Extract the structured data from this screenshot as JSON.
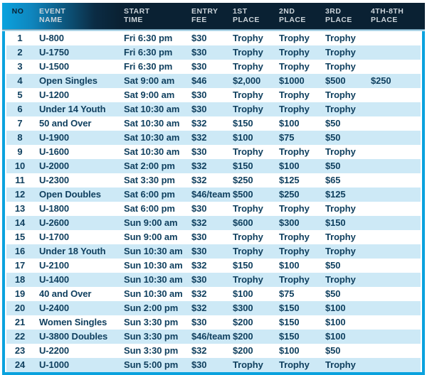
{
  "colors": {
    "frame_blue": "#0aa2de",
    "header_dark": "#0a2133",
    "header_text": "#ccd4da",
    "row_alt": "#cde9f6",
    "body_text": "#10405f"
  },
  "table": {
    "column_ids": [
      "no",
      "event",
      "start",
      "fee",
      "first",
      "second",
      "third",
      "fourth_eighth"
    ],
    "header": [
      {
        "line1": "NO",
        "line2": ""
      },
      {
        "line1": "EVENT",
        "line2": "NAME"
      },
      {
        "line1": "START",
        "line2": "TIME"
      },
      {
        "line1": "ENTRY",
        "line2": "FEE"
      },
      {
        "line1": "1ST",
        "line2": "PLACE"
      },
      {
        "line1": "2ND",
        "line2": "PLACE"
      },
      {
        "line1": "3RD",
        "line2": "PLACE"
      },
      {
        "line1": "4TH-8TH",
        "line2": "PLACE"
      }
    ],
    "rows": [
      {
        "no": "1",
        "event": "U-800",
        "start": "Fri 6:30 pm",
        "fee": "$30",
        "first": "Trophy",
        "second": "Trophy",
        "third": "Trophy",
        "fourth_eighth": ""
      },
      {
        "no": "2",
        "event": "U-1750",
        "start": "Fri 6:30 pm",
        "fee": "$30",
        "first": "Trophy",
        "second": "Trophy",
        "third": "Trophy",
        "fourth_eighth": ""
      },
      {
        "no": "3",
        "event": "U-1500",
        "start": "Fri 6:30 pm",
        "fee": "$30",
        "first": "Trophy",
        "second": "Trophy",
        "third": "Trophy",
        "fourth_eighth": ""
      },
      {
        "no": "4",
        "event": "Open Singles",
        "start": "Sat 9:00 am",
        "fee": "$46",
        "first": "$2,000",
        "second": "$1000",
        "third": "$500",
        "fourth_eighth": "$250"
      },
      {
        "no": "5",
        "event": "U-1200",
        "start": "Sat 9:00 am",
        "fee": "$30",
        "first": "Trophy",
        "second": "Trophy",
        "third": "Trophy",
        "fourth_eighth": ""
      },
      {
        "no": "6",
        "event": "Under 14 Youth",
        "start": "Sat 10:30 am",
        "fee": "$30",
        "first": "Trophy",
        "second": "Trophy",
        "third": "Trophy",
        "fourth_eighth": ""
      },
      {
        "no": "7",
        "event": "50 and Over",
        "start": "Sat 10:30 am",
        "fee": "$32",
        "first": "$150",
        "second": "$100",
        "third": "$50",
        "fourth_eighth": ""
      },
      {
        "no": "8",
        "event": "U-1900",
        "start": "Sat 10:30 am",
        "fee": "$32",
        "first": "$100",
        "second": "$75",
        "third": "$50",
        "fourth_eighth": ""
      },
      {
        "no": "9",
        "event": "U-1600",
        "start": "Sat 10:30 am",
        "fee": "$30",
        "first": "Trophy",
        "second": "Trophy",
        "third": "Trophy",
        "fourth_eighth": ""
      },
      {
        "no": "10",
        "event": "U-2000",
        "start": "Sat 2:00 pm",
        "fee": "$32",
        "first": "$150",
        "second": "$100",
        "third": "$50",
        "fourth_eighth": ""
      },
      {
        "no": "11",
        "event": "U-2300",
        "start": "Sat 3:30 pm",
        "fee": "$32",
        "first": "$250",
        "second": "$125",
        "third": "$65",
        "fourth_eighth": ""
      },
      {
        "no": "12",
        "event": "Open Doubles",
        "start": "Sat 6:00 pm",
        "fee": "$46/team",
        "first": "$500",
        "second": "$250",
        "third": "$125",
        "fourth_eighth": ""
      },
      {
        "no": "13",
        "event": "U-1800",
        "start": "Sat 6:00 pm",
        "fee": "$30",
        "first": "Trophy",
        "second": "Trophy",
        "third": "Trophy",
        "fourth_eighth": ""
      },
      {
        "no": "14",
        "event": "U-2600",
        "start": "Sun 9:00 am",
        "fee": "$32",
        "first": "$600",
        "second": "$300",
        "third": "$150",
        "fourth_eighth": ""
      },
      {
        "no": "15",
        "event": "U-1700",
        "start": "Sun 9:00 am",
        "fee": "$30",
        "first": "Trophy",
        "second": "Trophy",
        "third": "Trophy",
        "fourth_eighth": ""
      },
      {
        "no": "16",
        "event": "Under 18 Youth",
        "start": "Sun 10:30 am",
        "fee": "$30",
        "first": "Trophy",
        "second": "Trophy",
        "third": "Trophy",
        "fourth_eighth": ""
      },
      {
        "no": "17",
        "event": "U-2100",
        "start": "Sun 10:30 am",
        "fee": "$32",
        "first": "$150",
        "second": "$100",
        "third": "$50",
        "fourth_eighth": ""
      },
      {
        "no": "18",
        "event": "U-1400",
        "start": "Sun 10:30 am",
        "fee": "$30",
        "first": "Trophy",
        "second": "Trophy",
        "third": "Trophy",
        "fourth_eighth": ""
      },
      {
        "no": "19",
        "event": "40 and Over",
        "start": "Sun 10:30 am",
        "fee": "$32",
        "first": "$100",
        "second": "$75",
        "third": "$50",
        "fourth_eighth": ""
      },
      {
        "no": "20",
        "event": "U-2400",
        "start": "Sun 2:00 pm",
        "fee": "$32",
        "first": "$300",
        "second": "$150",
        "third": "$100",
        "fourth_eighth": ""
      },
      {
        "no": "21",
        "event": "Women Singles",
        "start": "Sun 3:30 pm",
        "fee": "$30",
        "first": "$200",
        "second": "$150",
        "third": "$100",
        "fourth_eighth": ""
      },
      {
        "no": "22",
        "event": "U-3800 Doubles",
        "start": "Sun 3:30 pm",
        "fee": "$46/team",
        "first": "$200",
        "second": "$150",
        "third": "$100",
        "fourth_eighth": ""
      },
      {
        "no": "23",
        "event": "U-2200",
        "start": "Sun 3:30 pm",
        "fee": "$32",
        "first": "$200",
        "second": "$100",
        "third": "$50",
        "fourth_eighth": ""
      },
      {
        "no": "24",
        "event": "U-1000",
        "start": "Sun 5:00 pm",
        "fee": "$30",
        "first": "Trophy",
        "second": "Trophy",
        "third": "Trophy",
        "fourth_eighth": ""
      }
    ]
  }
}
